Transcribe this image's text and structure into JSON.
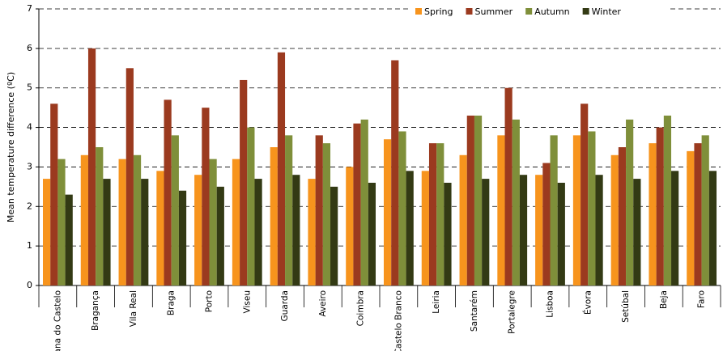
{
  "chart_data": {
    "type": "bar",
    "y_label": "Mean temperature difference (ºC)",
    "categories": [
      "Viana do Castelo",
      "Bragança",
      "Vila Real",
      "Braga",
      "Porto",
      "Viseu",
      "Guarda",
      "Aveiro",
      "Coimbra",
      "Castelo Branco",
      "Leiria",
      "Santarém",
      "Portalegre",
      "Lisboa",
      "Évora",
      "Setúbal",
      "Beja",
      "Faro"
    ],
    "series": [
      {
        "name": "Spring",
        "color": "#f7941d",
        "values": [
          2.7,
          3.3,
          3.2,
          2.9,
          2.8,
          3.2,
          3.5,
          2.7,
          3.0,
          3.7,
          2.9,
          3.3,
          3.8,
          2.8,
          3.8,
          3.3,
          3.6,
          3.4
        ]
      },
      {
        "name": "Summer",
        "color": "#9b3a1f",
        "values": [
          4.6,
          6.0,
          5.5,
          4.7,
          4.5,
          5.2,
          5.9,
          3.8,
          4.1,
          5.7,
          3.6,
          4.3,
          5.0,
          3.1,
          4.6,
          3.5,
          4.0,
          3.6
        ]
      },
      {
        "name": "Autumn",
        "color": "#7f8f3a",
        "values": [
          3.2,
          3.5,
          3.3,
          3.8,
          3.2,
          4.0,
          3.8,
          3.6,
          4.2,
          3.9,
          3.6,
          4.3,
          4.2,
          3.8,
          3.9,
          4.2,
          4.3,
          3.8
        ]
      },
      {
        "name": "Winter",
        "color": "#333a14",
        "values": [
          2.3,
          2.7,
          2.7,
          2.4,
          2.5,
          2.7,
          2.8,
          2.5,
          2.6,
          2.9,
          2.6,
          2.7,
          2.8,
          2.6,
          2.8,
          2.7,
          2.9,
          2.9
        ]
      }
    ],
    "ylim": [
      0,
      7
    ],
    "yticks": [
      0,
      1,
      2,
      3,
      4,
      5,
      6,
      7
    ],
    "grid": true,
    "legend": "top-right"
  }
}
